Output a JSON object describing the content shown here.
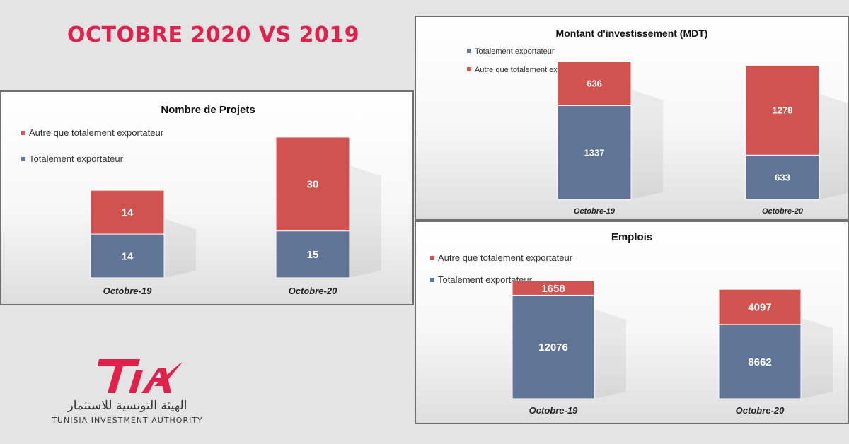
{
  "headline": "OCTOBRE 2020 VS 2019",
  "logo": {
    "mark": "TIA",
    "arabic": "الهيئة التونسية للاستثمار",
    "english": "TUNISIA INVESTMENT AUTHORITY"
  },
  "colors": {
    "red": "#d0534f",
    "blue": "#607596",
    "headline": "#e0214b"
  },
  "chart_data": [
    {
      "type": "bar",
      "stacked": true,
      "title": "Nombre de Projets",
      "categories": [
        "Octobre-19",
        "Octobre-20"
      ],
      "series": [
        {
          "name": "Totalement exportateur",
          "values": [
            14,
            15
          ]
        },
        {
          "name": "Autre que totalement exportateur",
          "values": [
            14,
            30
          ]
        }
      ],
      "legend": [
        "Autre que totalement exportateur",
        "Totalement exportateur"
      ],
      "legend_position": "top-left",
      "grid": false,
      "ylim": [
        0,
        52
      ]
    },
    {
      "type": "bar",
      "stacked": true,
      "title": "Montant d'investissement (MDT)",
      "categories": [
        "Octobre-19",
        "Octobre-20"
      ],
      "series": [
        {
          "name": "Totalement exportateur",
          "values": [
            1337,
            633
          ]
        },
        {
          "name": "Autre que totalement exportateur",
          "values": [
            636,
            1278
          ]
        }
      ],
      "legend": [
        "Totalement exportateur",
        "Autre que totalement exportateur"
      ],
      "legend_position": "top-left",
      "grid": false,
      "ylim": [
        0,
        2200
      ]
    },
    {
      "type": "bar",
      "stacked": true,
      "title": "Emplois",
      "categories": [
        "Octobre-19",
        "Octobre-20"
      ],
      "series": [
        {
          "name": "Totalement exportateur",
          "values": [
            12076,
            8662
          ]
        },
        {
          "name": "Autre que totalement exportateur",
          "values": [
            1658,
            4097
          ]
        }
      ],
      "legend": [
        "Autre que totalement exportateur",
        "Totalement exportateur"
      ],
      "legend_position": "top-left",
      "grid": false,
      "ylim": [
        0,
        14500
      ]
    }
  ]
}
